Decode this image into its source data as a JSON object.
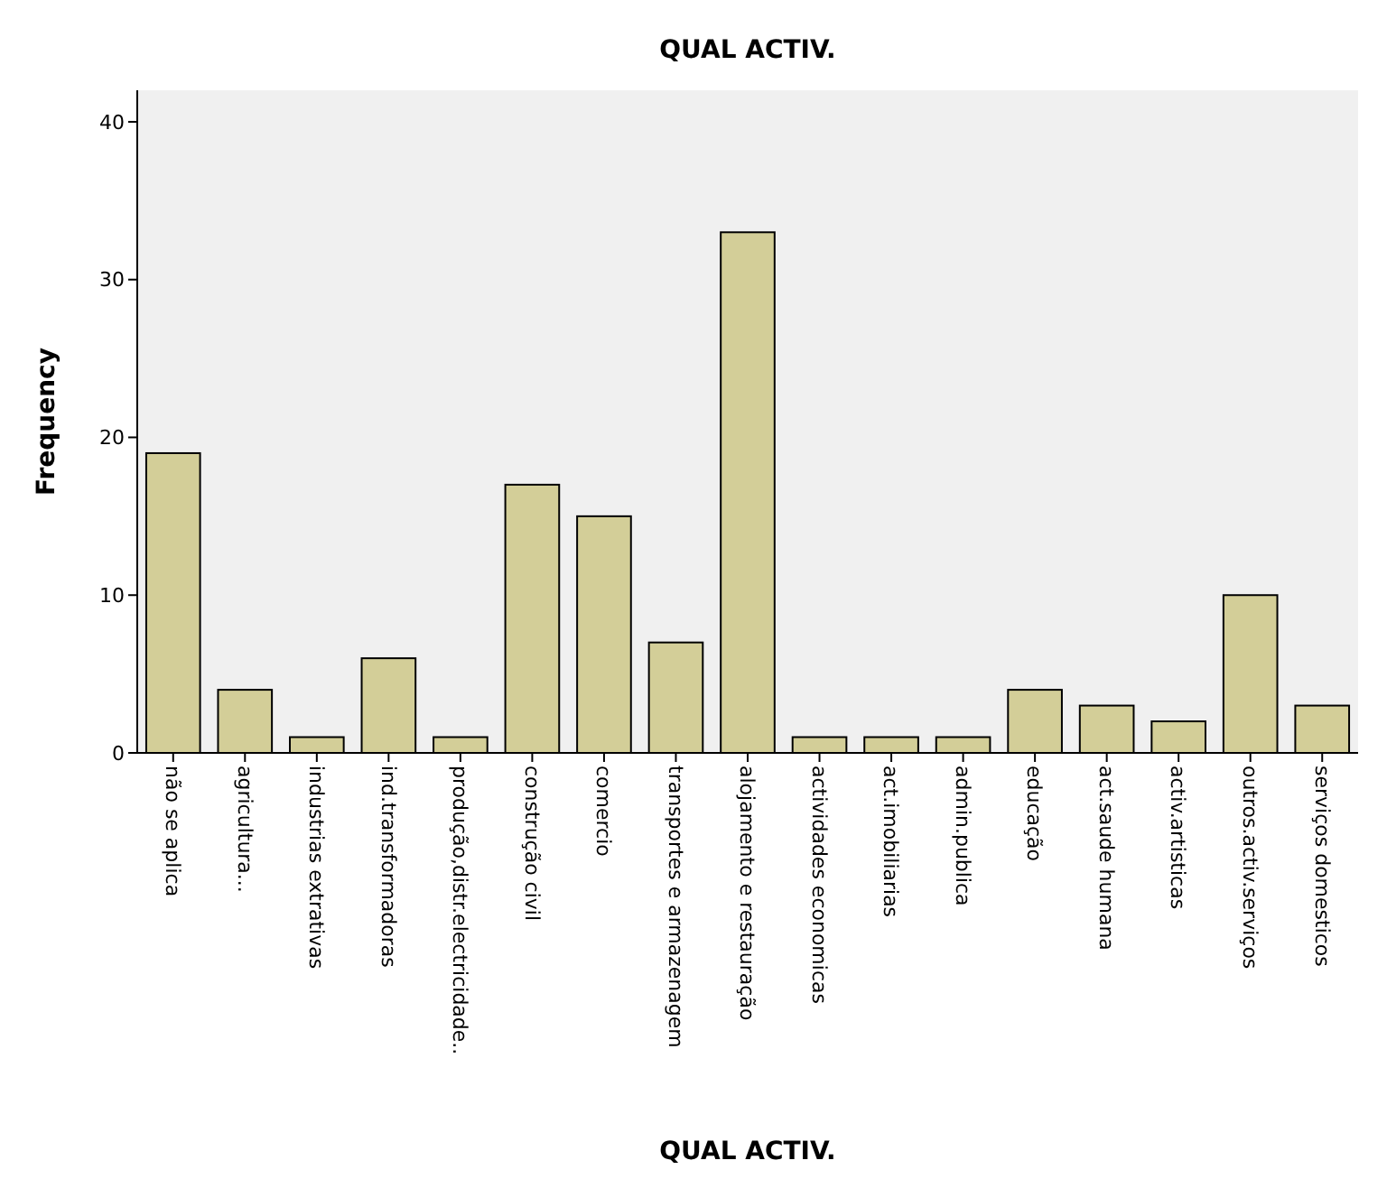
{
  "chart_data": {
    "type": "bar",
    "title": "QUAL ACTIV.",
    "xlabel": "QUAL ACTIV.",
    "ylabel": "Frequency",
    "categories": [
      "não se aplica",
      "agricultura...",
      "industrias extrativas",
      "ind.transformadoras",
      "produção,distr.electricidade..",
      "construção civil",
      "comercio",
      "transportes e armazenagem",
      "alojamento e restauração",
      "actividades economicas",
      "act.imobiliarias",
      "admin.publica",
      "educação",
      "act.saude humana",
      "activ.artisticas",
      "outros.activ.serviços",
      "serviços domesticos"
    ],
    "values": [
      19,
      4,
      1,
      6,
      1,
      17,
      15,
      7,
      33,
      1,
      1,
      1,
      4,
      3,
      2,
      10,
      3
    ],
    "color": "#d3ce98",
    "ylim": [
      0,
      42
    ],
    "yticks": [
      0,
      10,
      20,
      30,
      40
    ],
    "grid": false
  }
}
